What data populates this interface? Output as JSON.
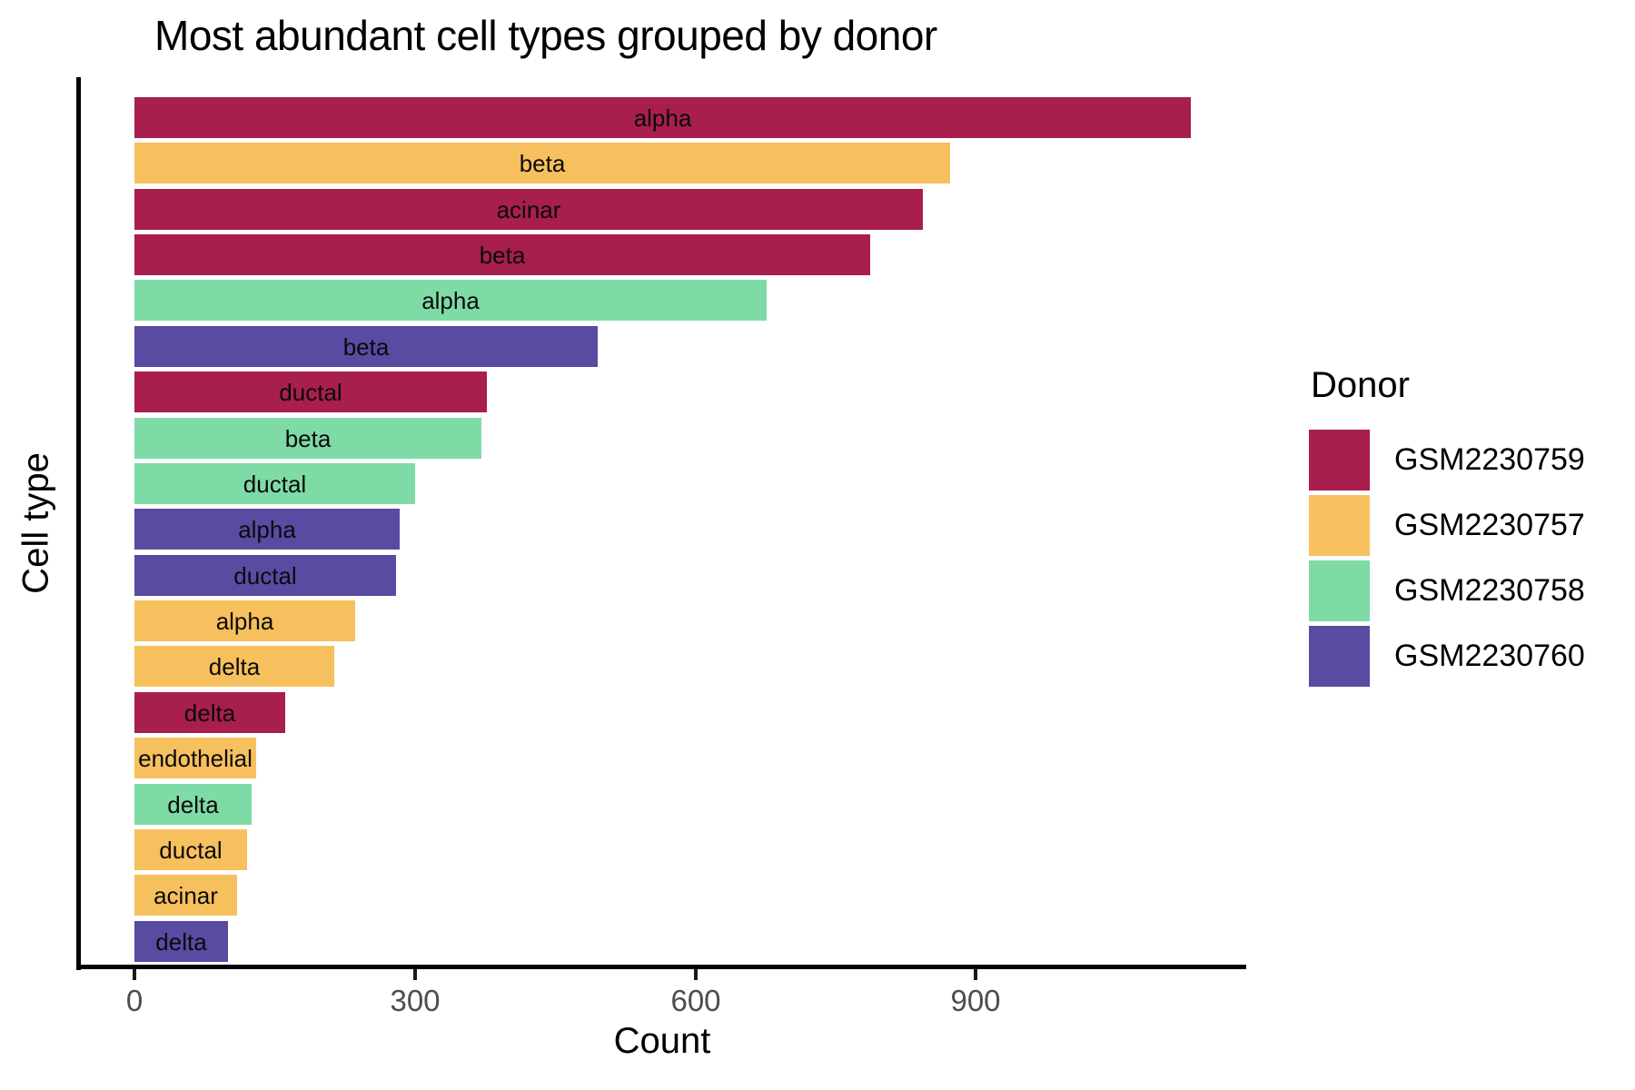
{
  "chart_data": {
    "type": "bar",
    "orientation": "horizontal",
    "title": "Most abundant cell types grouped by donor",
    "xlabel": "Count",
    "ylabel": "Cell type",
    "legend_title": "Donor",
    "x_ticks": [
      0,
      300,
      600,
      900
    ],
    "xlim": [
      0,
      1190
    ],
    "grid": false,
    "legend_position": "right",
    "donors": [
      {
        "id": "GSM2230759",
        "color": "#A81E4D"
      },
      {
        "id": "GSM2230757",
        "color": "#F7C05E"
      },
      {
        "id": "GSM2230758",
        "color": "#7FDBA6"
      },
      {
        "id": "GSM2230760",
        "color": "#584BA1"
      }
    ],
    "bars": [
      {
        "cell_type": "alpha",
        "donor": "GSM2230759",
        "count": 1130
      },
      {
        "cell_type": "beta",
        "donor": "GSM2230757",
        "count": 872
      },
      {
        "cell_type": "acinar",
        "donor": "GSM2230759",
        "count": 843
      },
      {
        "cell_type": "beta",
        "donor": "GSM2230759",
        "count": 787
      },
      {
        "cell_type": "alpha",
        "donor": "GSM2230758",
        "count": 676
      },
      {
        "cell_type": "beta",
        "donor": "GSM2230760",
        "count": 495
      },
      {
        "cell_type": "ductal",
        "donor": "GSM2230759",
        "count": 377
      },
      {
        "cell_type": "beta",
        "donor": "GSM2230758",
        "count": 371
      },
      {
        "cell_type": "ductal",
        "donor": "GSM2230758",
        "count": 300
      },
      {
        "cell_type": "alpha",
        "donor": "GSM2230760",
        "count": 284
      },
      {
        "cell_type": "ductal",
        "donor": "GSM2230760",
        "count": 280
      },
      {
        "cell_type": "alpha",
        "donor": "GSM2230757",
        "count": 236
      },
      {
        "cell_type": "delta",
        "donor": "GSM2230757",
        "count": 214
      },
      {
        "cell_type": "delta",
        "donor": "GSM2230759",
        "count": 161
      },
      {
        "cell_type": "endothelial",
        "donor": "GSM2230757",
        "count": 130
      },
      {
        "cell_type": "delta",
        "donor": "GSM2230758",
        "count": 125
      },
      {
        "cell_type": "ductal",
        "donor": "GSM2230757",
        "count": 120
      },
      {
        "cell_type": "acinar",
        "donor": "GSM2230757",
        "count": 110
      },
      {
        "cell_type": "delta",
        "donor": "GSM2230760",
        "count": 100
      }
    ]
  }
}
